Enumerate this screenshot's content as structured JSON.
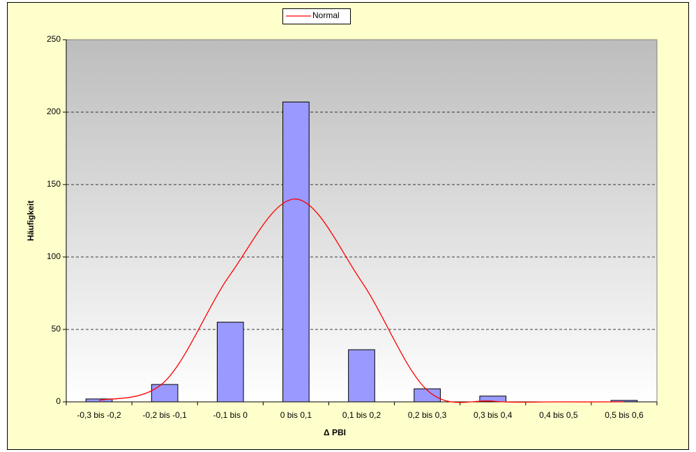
{
  "chart_data": {
    "type": "bar",
    "categories": [
      "-0,3 bis -0,2",
      "-0,2 bis -0,1",
      "-0,1 bis 0",
      "0 bis 0,1",
      "0,1 bis 0,2",
      "0,2 bis 0,3",
      "0,3 bis 0,4",
      "0,4 bis 0,5",
      "0,5 bis 0,6"
    ],
    "values": [
      2,
      12,
      55,
      207,
      36,
      9,
      4,
      0,
      1
    ],
    "color": "#9999ff",
    "lines": [
      {
        "name": "Normal",
        "color": "#ff0000",
        "values": [
          1,
          14,
          88,
          140,
          83,
          8,
          0.5,
          0,
          0
        ]
      }
    ],
    "xlabel": "Δ PBI",
    "ylabel": "Häufigkeit",
    "ylim": [
      0,
      250
    ],
    "yticks": [
      0,
      50,
      100,
      150,
      200,
      250
    ],
    "grid": true,
    "legend": "top"
  }
}
